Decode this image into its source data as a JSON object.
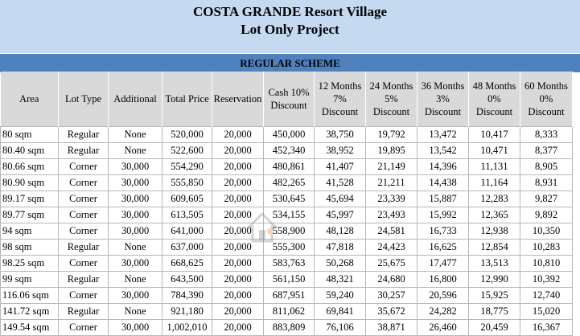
{
  "title": {
    "line1": "COSTA GRANDE  Resort Village",
    "line2": "Lot Only Project"
  },
  "scheme_label": "REGULAR SCHEME",
  "columns": [
    "Area",
    "Lot Type",
    "Additional",
    "Total Price",
    "Reservation",
    "Cash 10%\nDiscount",
    "12 Months\n7%\nDiscount",
    "24 Months\n5%\nDiscount",
    "36 Months\n3%\nDiscount",
    "48 Months\n0%\nDiscount",
    "60 Months\n0%\nDiscount"
  ],
  "rows": [
    [
      "80 sqm",
      "Regular",
      "None",
      "520,000",
      "20,000",
      "450,000",
      "38,750",
      "19,792",
      "13,472",
      "10,417",
      "8,333"
    ],
    [
      "80.40 sqm",
      "Regular",
      "None",
      "522,600",
      "20,000",
      "452,340",
      "38,952",
      "19,895",
      "13,542",
      "10,471",
      "8,377"
    ],
    [
      "80.66 sqm",
      "Corner",
      "30,000",
      "554,290",
      "20,000",
      "480,861",
      "41,407",
      "21,149",
      "14,396",
      "11,131",
      "8,905"
    ],
    [
      "80.90 sqm",
      "Corner",
      "30,000",
      "555,850",
      "20,000",
      "482,265",
      "41,528",
      "21,211",
      "14,438",
      "11,164",
      "8,931"
    ],
    [
      "89.17 sqm",
      "Corner",
      "30,000",
      "609,605",
      "20,000",
      "530,645",
      "45,694",
      "23,339",
      "15,887",
      "12,283",
      "9,827"
    ],
    [
      "89.77 sqm",
      "Corner",
      "30,000",
      "613,505",
      "20,000",
      "534,155",
      "45,997",
      "23,493",
      "15,992",
      "12,365",
      "9,892"
    ],
    [
      "94 sqm",
      "Corner",
      "30,000",
      "641,000",
      "20,000",
      "558,900",
      "48,128",
      "24,581",
      "16,733",
      "12,938",
      "10,350"
    ],
    [
      "98 sqm",
      "Regular",
      "None",
      "637,000",
      "20,000",
      "555,300",
      "47,818",
      "24,423",
      "16,625",
      "12,854",
      "10,283"
    ],
    [
      "98.25 sqm",
      "Corner",
      "30,000",
      "668,625",
      "20,000",
      "583,763",
      "50,268",
      "25,675",
      "17,477",
      "13,513",
      "10,810"
    ],
    [
      "99 sqm",
      "Regular",
      "None",
      "643,500",
      "20,000",
      "561,150",
      "48,321",
      "24,680",
      "16,800",
      "12,990",
      "10,392"
    ],
    [
      "116.06 sqm",
      "Corner",
      "30,000",
      "784,390",
      "20,000",
      "687,951",
      "59,240",
      "30,257",
      "20,596",
      "15,925",
      "12,740"
    ],
    [
      "141.72 sqm",
      "Regular",
      "None",
      "921,180",
      "20,000",
      "811,062",
      "69,841",
      "35,672",
      "24,282",
      "18,775",
      "15,020"
    ],
    [
      "149.54 sqm",
      "Corner",
      "30,000",
      "1,002,010",
      "20,000",
      "883,809",
      "76,106",
      "38,871",
      "26,460",
      "20,459",
      "16,367"
    ]
  ],
  "watermark": {
    "icon": "house-logo-icon",
    "text": "Lamudi-style watermark",
    "color": "#8c8c8c"
  },
  "colors": {
    "title_bg": "#c5d9f1",
    "scheme_band": "#4f81bd",
    "header_bg": "#d9d9d9",
    "grid": "#b7b7b7"
  }
}
